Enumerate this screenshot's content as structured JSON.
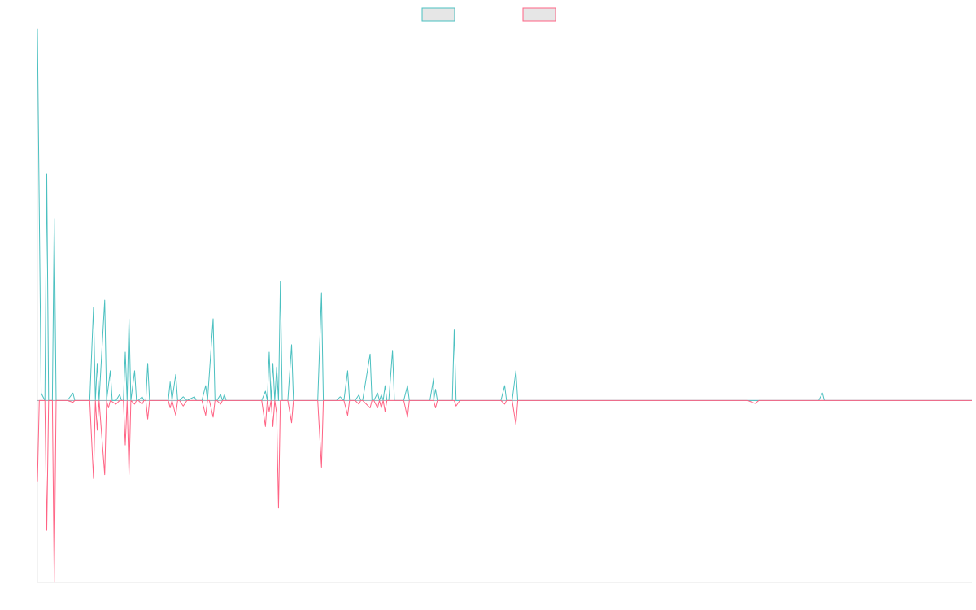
{
  "chart_data": {
    "type": "line",
    "title": "",
    "xlabel": "",
    "ylabel": "",
    "grid": false,
    "legend": {
      "position": "top-center"
    },
    "ylim": [
      -0.49,
      1.0
    ],
    "xlim": [
      0,
      250
    ],
    "series": [
      {
        "color": "#4bc0c0",
        "fill": "#e6e6e6",
        "points": [
          [
            0,
            1.0
          ],
          [
            1,
            0.02
          ],
          [
            2,
            0.0
          ],
          [
            2.5,
            0.61
          ],
          [
            3,
            0.0
          ],
          [
            3.5,
            0.0
          ],
          [
            4,
            0.0
          ],
          [
            4.5,
            0.49
          ],
          [
            5,
            0.0
          ],
          [
            6,
            0.0
          ],
          [
            8,
            0.0
          ],
          [
            9.5,
            0.02
          ],
          [
            10,
            0.0
          ],
          [
            12,
            0.0
          ],
          [
            14,
            0.0
          ],
          [
            15,
            0.25
          ],
          [
            15.5,
            0.0
          ],
          [
            16,
            0.1
          ],
          [
            16.5,
            0.0
          ],
          [
            18,
            0.27
          ],
          [
            18.5,
            0.0
          ],
          [
            19.5,
            0.08
          ],
          [
            20,
            0.0
          ],
          [
            21,
            0.0
          ],
          [
            22,
            0.016
          ],
          [
            22.5,
            0.0
          ],
          [
            23,
            0.0
          ],
          [
            23.5,
            0.13
          ],
          [
            24,
            0.0
          ],
          [
            24.5,
            0.22
          ],
          [
            25,
            0.0
          ],
          [
            26,
            0.08
          ],
          [
            26.5,
            0.0
          ],
          [
            27,
            0.0
          ],
          [
            28,
            0.01
          ],
          [
            28.5,
            0.0
          ],
          [
            29,
            0.0
          ],
          [
            29.5,
            0.1
          ],
          [
            30,
            0.0
          ],
          [
            35,
            0.0
          ],
          [
            35.5,
            0.05
          ],
          [
            36,
            0.0
          ],
          [
            37,
            0.07
          ],
          [
            37.5,
            0.0
          ],
          [
            38,
            0.0
          ],
          [
            39,
            0.01
          ],
          [
            40,
            0.0
          ],
          [
            42,
            0.01
          ],
          [
            42.5,
            0.0
          ],
          [
            44,
            0.0
          ],
          [
            45,
            0.04
          ],
          [
            45.5,
            0.0
          ],
          [
            47,
            0.22
          ],
          [
            47.5,
            0.0
          ],
          [
            48,
            0.0
          ],
          [
            49,
            0.016
          ],
          [
            49.5,
            0.0
          ],
          [
            50,
            0.016
          ],
          [
            50.5,
            0.0
          ],
          [
            51,
            0.0
          ],
          [
            52,
            0.0
          ],
          [
            60,
            0.0
          ],
          [
            61,
            0.025
          ],
          [
            61.5,
            0.0
          ],
          [
            62,
            0.13
          ],
          [
            62.5,
            0.0
          ],
          [
            63,
            0.1
          ],
          [
            63.5,
            0.0
          ],
          [
            64,
            0.09
          ],
          [
            64.5,
            0.0
          ],
          [
            65,
            0.32
          ],
          [
            65.5,
            0.0
          ],
          [
            67,
            0.0
          ],
          [
            68,
            0.15
          ],
          [
            68.5,
            0.0
          ],
          [
            70,
            0.0
          ],
          [
            74,
            0.0
          ],
          [
            75,
            0.0
          ],
          [
            76,
            0.29
          ],
          [
            76.5,
            0.0
          ],
          [
            77,
            0.0
          ],
          [
            80,
            0.0
          ],
          [
            81,
            0.01
          ],
          [
            82,
            0.0
          ],
          [
            83,
            0.08
          ],
          [
            83.5,
            0.0
          ],
          [
            84,
            0.0
          ],
          [
            85,
            0.0
          ],
          [
            86,
            0.015
          ],
          [
            86.5,
            0.0
          ],
          [
            87,
            0.0
          ],
          [
            89,
            0.125
          ],
          [
            89.5,
            0.0
          ],
          [
            90,
            0.0
          ],
          [
            91,
            0.02
          ],
          [
            91.5,
            0.0
          ],
          [
            92,
            0.015
          ],
          [
            92.5,
            0.0
          ],
          [
            93,
            0.04
          ],
          [
            93.5,
            0.0
          ],
          [
            94,
            0.0
          ],
          [
            95,
            0.135
          ],
          [
            95.5,
            0.0
          ],
          [
            96,
            0.0
          ],
          [
            98,
            0.0
          ],
          [
            99,
            0.04
          ],
          [
            99.5,
            0.0
          ],
          [
            100,
            0.0
          ],
          [
            105,
            0.0
          ],
          [
            106,
            0.06
          ],
          [
            106.5,
            0.03
          ],
          [
            107,
            0.0
          ],
          [
            110,
            0.0
          ],
          [
            111,
            0.0
          ],
          [
            106,
            0.0
          ],
          [
            111,
            0.0
          ],
          [
            111.5,
            0.19
          ],
          [
            112,
            0.0
          ],
          [
            113,
            0.0
          ],
          [
            124,
            0.0
          ],
          [
            125,
            0.04
          ],
          [
            125.5,
            0.0
          ],
          [
            127,
            0.0
          ],
          [
            128,
            0.08
          ],
          [
            128.5,
            0.0
          ],
          [
            130,
            0.0
          ],
          [
            134,
            0.0
          ],
          [
            135,
            0.0
          ],
          [
            200,
            0.0
          ],
          [
            209,
            0.0
          ],
          [
            210,
            0.02
          ],
          [
            210.5,
            0.0
          ],
          [
            211,
            0.0
          ],
          [
            250,
            0.0
          ]
        ]
      },
      {
        "color": "#ff6384",
        "fill": "#e6e6e6",
        "points": [
          [
            0,
            -0.22
          ],
          [
            0.5,
            0.0
          ],
          [
            1,
            0.0
          ],
          [
            2,
            0.0
          ],
          [
            2.5,
            -0.35
          ],
          [
            3,
            0.0
          ],
          [
            3.5,
            0.0
          ],
          [
            4,
            0.0
          ],
          [
            4.5,
            -0.49
          ],
          [
            5,
            0.0
          ],
          [
            6,
            0.0
          ],
          [
            8,
            0.0
          ],
          [
            9.5,
            -0.005
          ],
          [
            10,
            0.0
          ],
          [
            14,
            0.0
          ],
          [
            15,
            -0.21
          ],
          [
            15.5,
            0.0
          ],
          [
            16,
            -0.08
          ],
          [
            16.5,
            0.0
          ],
          [
            18,
            -0.2
          ],
          [
            18.5,
            0.0
          ],
          [
            19,
            -0.02
          ],
          [
            19.5,
            0.0
          ],
          [
            21,
            -0.01
          ],
          [
            22,
            0.0
          ],
          [
            23,
            0.0
          ],
          [
            23.5,
            -0.12
          ],
          [
            24,
            0.0
          ],
          [
            24.5,
            -0.2
          ],
          [
            25,
            0.0
          ],
          [
            26,
            -0.01
          ],
          [
            26.5,
            0.0
          ],
          [
            27,
            0.0
          ],
          [
            28,
            -0.01
          ],
          [
            28.5,
            0.0
          ],
          [
            29,
            0.0
          ],
          [
            29.5,
            -0.05
          ],
          [
            30,
            0.0
          ],
          [
            35,
            0.0
          ],
          [
            35.5,
            -0.02
          ],
          [
            36,
            0.0
          ],
          [
            37,
            -0.04
          ],
          [
            37.5,
            0.0
          ],
          [
            38,
            0.0
          ],
          [
            39,
            -0.015
          ],
          [
            40,
            0.0
          ],
          [
            44,
            0.0
          ],
          [
            45,
            -0.04
          ],
          [
            45.5,
            0.0
          ],
          [
            46,
            0.0
          ],
          [
            47,
            -0.045
          ],
          [
            47.5,
            0.0
          ],
          [
            48,
            0.0
          ],
          [
            49,
            -0.01
          ],
          [
            49.5,
            0.0
          ],
          [
            52,
            0.0
          ],
          [
            60,
            0.0
          ],
          [
            61,
            -0.07
          ],
          [
            61.5,
            0.0
          ],
          [
            62,
            -0.03
          ],
          [
            62.5,
            0.0
          ],
          [
            63,
            -0.07
          ],
          [
            63.5,
            0.0
          ],
          [
            64,
            -0.035
          ],
          [
            64.5,
            -0.29
          ],
          [
            65,
            0.0
          ],
          [
            67,
            0.0
          ],
          [
            68,
            -0.06
          ],
          [
            68.5,
            0.0
          ],
          [
            70,
            0.0
          ],
          [
            74,
            0.0
          ],
          [
            75,
            0.0
          ],
          [
            76,
            -0.18
          ],
          [
            76.5,
            0.0
          ],
          [
            77,
            0.0
          ],
          [
            82,
            0.0
          ],
          [
            83,
            -0.04
          ],
          [
            83.5,
            0.0
          ],
          [
            85,
            0.0
          ],
          [
            86,
            -0.01
          ],
          [
            86.5,
            0.0
          ],
          [
            87,
            0.0
          ],
          [
            89,
            -0.02
          ],
          [
            89.5,
            0.0
          ],
          [
            90,
            0.0
          ],
          [
            91,
            -0.02
          ],
          [
            91.5,
            0.0
          ],
          [
            92,
            -0.02
          ],
          [
            92.5,
            0.0
          ],
          [
            93,
            -0.03
          ],
          [
            93.5,
            0.0
          ],
          [
            94,
            0.0
          ],
          [
            95,
            0.0
          ],
          [
            98,
            0.0
          ],
          [
            99,
            -0.045
          ],
          [
            99.5,
            0.0
          ],
          [
            100,
            0.0
          ],
          [
            105,
            0.0
          ],
          [
            106,
            0.0
          ],
          [
            106.5,
            -0.02
          ],
          [
            107,
            0.0
          ],
          [
            110,
            0.0
          ],
          [
            111,
            0.0
          ],
          [
            111.5,
            0.0
          ],
          [
            112,
            -0.015
          ],
          [
            113,
            0.0
          ],
          [
            124,
            0.0
          ],
          [
            125,
            -0.01
          ],
          [
            125.5,
            0.0
          ],
          [
            127,
            0.0
          ],
          [
            128,
            -0.065
          ],
          [
            128.5,
            0.0
          ],
          [
            130,
            0.0
          ],
          [
            190,
            0.0
          ],
          [
            192,
            -0.008
          ],
          [
            193,
            0.0
          ],
          [
            250,
            0.0
          ]
        ]
      }
    ]
  }
}
